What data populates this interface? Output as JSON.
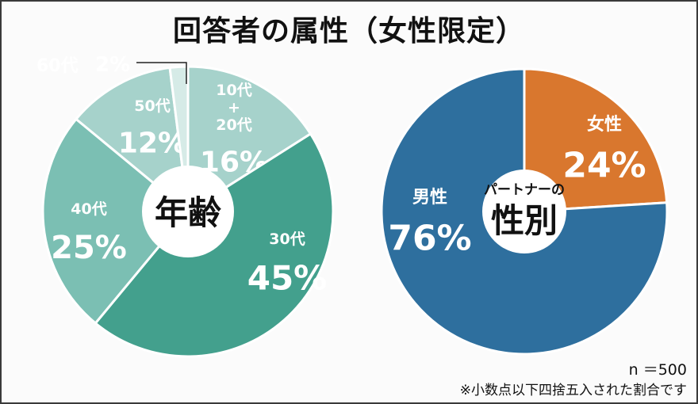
{
  "title": "回答者の属性（女性限定）",
  "chart_data": [
    {
      "type": "pie",
      "center_label": "年齢",
      "slices": [
        {
          "label_lines": [
            "10代",
            "+",
            "20代"
          ],
          "value": 16,
          "value_text": "16%",
          "color": "#a6d2cb"
        },
        {
          "label_lines": [
            "30代"
          ],
          "value": 45,
          "value_text": "45%",
          "color": "#43a08d"
        },
        {
          "label_lines": [
            "40代"
          ],
          "value": 25,
          "value_text": "25%",
          "color": "#7bbfb3"
        },
        {
          "label_lines": [
            "50代"
          ],
          "value": 12,
          "value_text": "12%",
          "color": "#a6d2cb"
        },
        {
          "label_lines": [
            "60代"
          ],
          "value": 2,
          "value_text": "2%",
          "color": "#d6ebe7"
        }
      ]
    },
    {
      "type": "pie",
      "center_label_small": "パートナーの",
      "center_label": "性別",
      "slices": [
        {
          "label_lines": [
            "女性"
          ],
          "value": 24,
          "value_text": "24%",
          "color": "#d9772e"
        },
        {
          "label_lines": [
            "男性"
          ],
          "value": 76,
          "value_text": "76%",
          "color": "#2e6f9e"
        }
      ]
    }
  ],
  "notes": {
    "sample_size": "n ＝500",
    "rounding": "※小数点以下四捨五入された割合です"
  }
}
